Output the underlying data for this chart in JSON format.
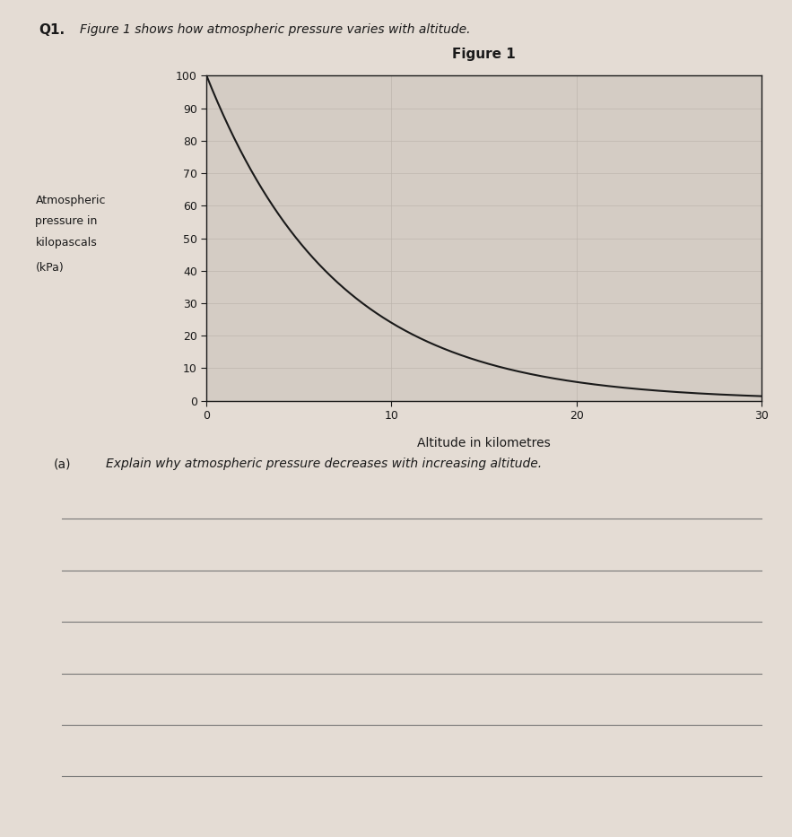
{
  "title_q": "Q1.",
  "subtitle": "Figure 1 shows how atmospheric pressure varies with altitude.",
  "fig_title": "Figure 1",
  "xlabel": "Altitude in kilometres",
  "ylabel_line1": "Atmospheric",
  "ylabel_line2": "pressure in",
  "ylabel_line3": "kilopascals",
  "ylabel_line4": "(kPa)",
  "xlim": [
    0,
    30
  ],
  "ylim": [
    0,
    100
  ],
  "xticks": [
    0,
    10,
    20,
    30
  ],
  "yticks": [
    0,
    10,
    20,
    30,
    40,
    50,
    60,
    70,
    80,
    90,
    100
  ],
  "curve_scale": 7.0,
  "bg_color": "#d4ccc4",
  "paper_color": "#e4dcd4",
  "grid_color": "#bcb4ac",
  "line_color": "#1a1a1a",
  "text_color": "#1a1a1a",
  "question_a_prefix": "(a)",
  "question_a_text": "Explain why atmospheric pressure decreases with increasing altitude.",
  "num_answer_lines": 6,
  "answer_line_color": "#777777"
}
